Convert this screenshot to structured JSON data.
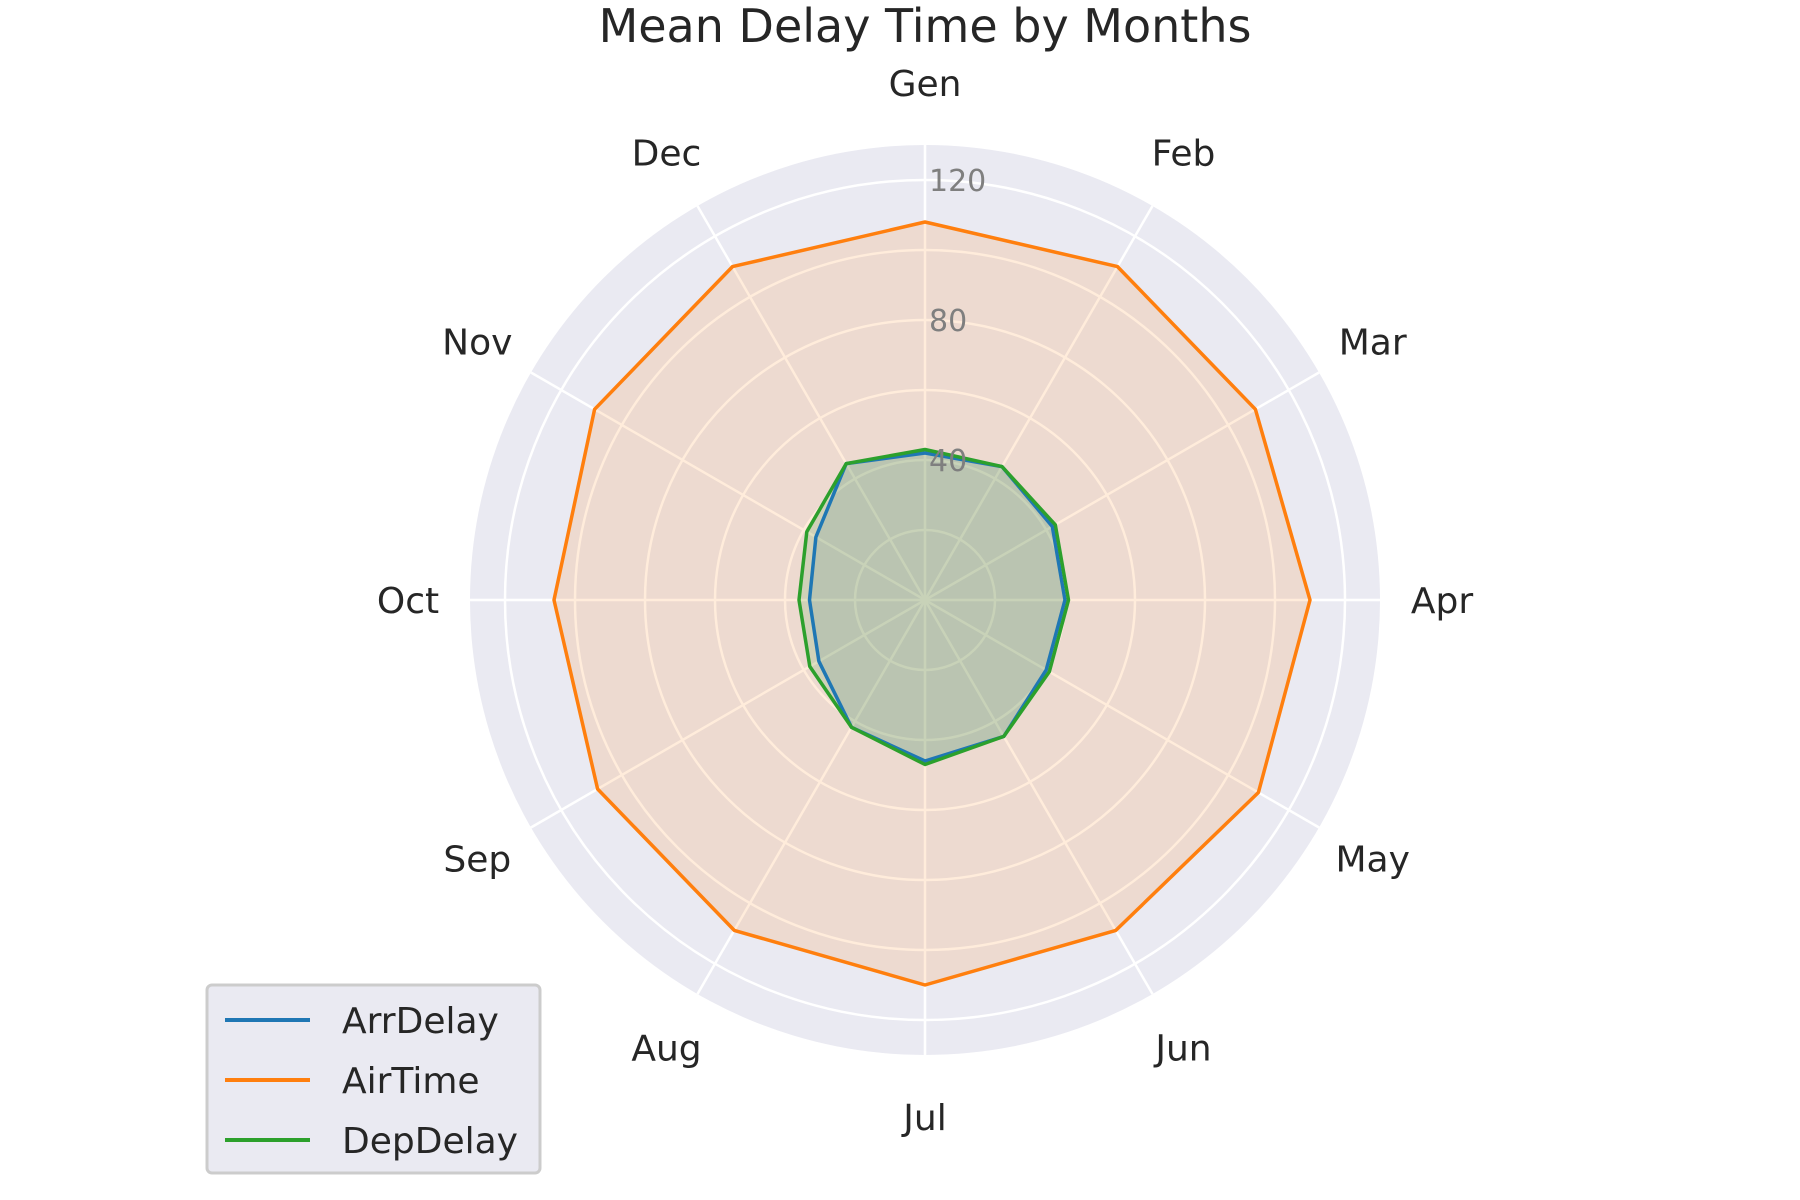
{
  "chart_data": {
    "type": "radar",
    "title": "Mean Delay Time by Months",
    "categories": [
      "Gen",
      "Feb",
      "Mar",
      "Apr",
      "May",
      "Jun",
      "Jul",
      "Aug",
      "Sep",
      "Oct",
      "Nov",
      "Dec"
    ],
    "rmax": 130,
    "rticks": [
      20,
      40,
      60,
      80,
      100,
      120
    ],
    "rtick_labels": [
      {
        "value": 40,
        "label": "40"
      },
      {
        "value": 80,
        "label": "80"
      },
      {
        "value": 120,
        "label": "120"
      }
    ],
    "grid": true,
    "legend_position": "lower-left",
    "series": [
      {
        "name": "ArrDelay",
        "color": "#1f77b4",
        "values": [
          42,
          44,
          42,
          40,
          40,
          45,
          46,
          42,
          35,
          33,
          36,
          45
        ]
      },
      {
        "name": "AirTime",
        "color": "#ff7f0e",
        "values": [
          108,
          110,
          109,
          110,
          110,
          109,
          110,
          109,
          108,
          106,
          109,
          110
        ]
      },
      {
        "name": "DepDelay",
        "color": "#2ca02c",
        "values": [
          43,
          44,
          43,
          41,
          41,
          45,
          47,
          42,
          38,
          36,
          39,
          45
        ]
      }
    ]
  }
}
